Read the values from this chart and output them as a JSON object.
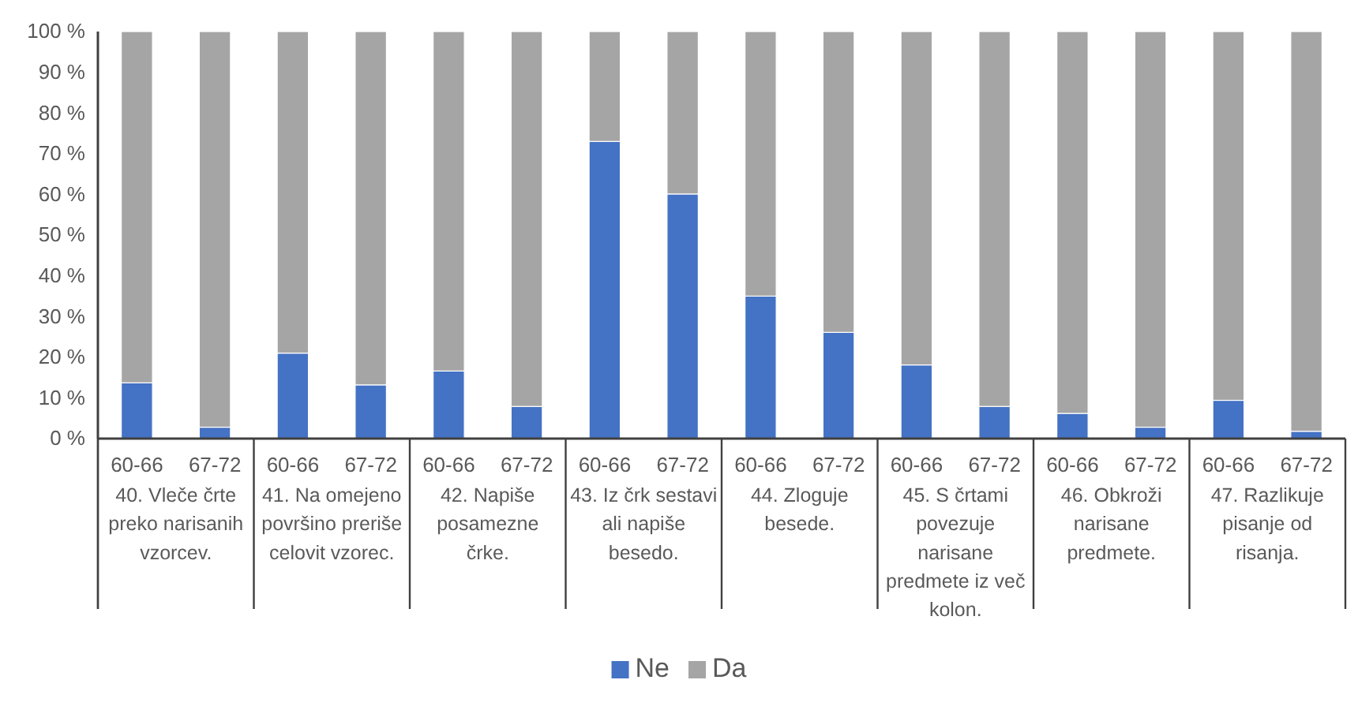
{
  "chart_data": {
    "type": "bar",
    "stacked": true,
    "categories": [
      "60-66",
      "67-72",
      "60-66",
      "67-72",
      "60-66",
      "67-72",
      "60-66",
      "67-72",
      "60-66",
      "67-72",
      "60-66",
      "67-72",
      "60-66",
      "67-72",
      "60-66",
      "67-72"
    ],
    "series": [
      {
        "name": "Ne",
        "color": "#4472c4",
        "values": [
          13.7,
          2.8,
          21.0,
          13.2,
          16.6,
          7.9,
          73.0,
          60.1,
          35.0,
          26.1,
          18.1,
          7.9,
          6.2,
          2.8,
          9.4,
          1.8
        ]
      },
      {
        "name": "Da",
        "color": "#a5a5a5",
        "values": [
          86.3,
          97.2,
          79.0,
          86.8,
          83.4,
          92.1,
          27.0,
          39.9,
          65.0,
          73.9,
          81.9,
          92.1,
          93.8,
          97.2,
          90.6,
          98.2
        ]
      }
    ],
    "annotations": [
      "40. Vleče črte preko narisanih vzorcev.",
      "41. Na omejeno površino preriše celovit vzorec.",
      "42. Napiše posamezne črke.",
      "43. Iz črk sestavi ali napiše besedo.",
      "44. Zloguje besede.",
      "45. S črtami povezuje narisane predmete iz več kolon.",
      "46. Obkroži narisane predmete.",
      "47. Razlikuje pisanje od risanja."
    ],
    "ylim": [
      0,
      100
    ],
    "yticks": [
      {
        "value": 0,
        "label": "0 %"
      },
      {
        "value": 10,
        "label": "10 %"
      },
      {
        "value": 20,
        "label": "20 %"
      },
      {
        "value": 30,
        "label": "30 %"
      },
      {
        "value": 40,
        "label": "40 %"
      },
      {
        "value": 50,
        "label": "50 %"
      },
      {
        "value": 60,
        "label": "60 %"
      },
      {
        "value": 70,
        "label": "70 %"
      },
      {
        "value": 80,
        "label": "80 %"
      },
      {
        "value": 90,
        "label": "90 %"
      },
      {
        "value": 100,
        "label": "100 %"
      }
    ],
    "grid": false,
    "legend": "bottom"
  }
}
